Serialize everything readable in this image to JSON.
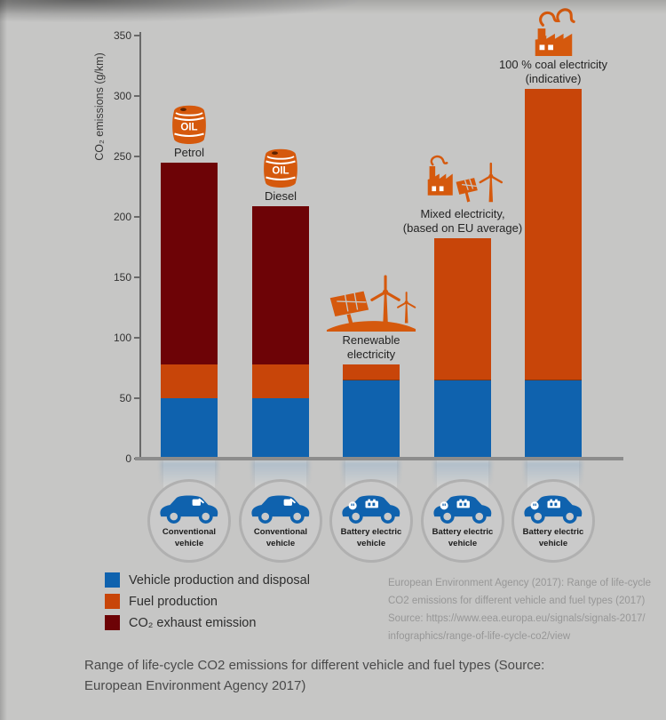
{
  "colors": {
    "background": "#c6c6c5",
    "bar_blue": "#0f62ae",
    "bar_orange": "#c84509",
    "bar_darkred": "#6d0306",
    "icon_orange": "#d5590d",
    "axis_gray": "#696969",
    "circle_ring": "#b0b0b0",
    "circle_fill": "#cacaca"
  },
  "chart_data": {
    "type": "bar",
    "stacked": true,
    "title": "",
    "xlabel": "",
    "ylabel": "CO₂ emissions (g/km)",
    "ylim": [
      0,
      350
    ],
    "yticks": [
      0,
      50,
      100,
      150,
      200,
      250,
      300,
      350
    ],
    "grid": false,
    "legend_position": "bottom-left",
    "categories": [
      "Petrol",
      "Diesel",
      "Renewable electricity",
      "Mixed electricity, (based on EU average)",
      "100 % coal electricity (indicative)"
    ],
    "series": [
      {
        "name": "Vehicle production and disposal",
        "color": "#0f62ae",
        "values": [
          50,
          50,
          65,
          65,
          65
        ]
      },
      {
        "name": "Fuel production",
        "color": "#c84509",
        "values": [
          28,
          28,
          13,
          117,
          241
        ]
      },
      {
        "name": "CO₂ exhaust emission",
        "color": "#6d0306",
        "values": [
          167,
          131,
          0,
          0,
          0
        ]
      }
    ],
    "stack_totals": [
      245,
      209,
      78,
      182,
      306
    ],
    "icon_text_oil": "OIL",
    "columns": [
      {
        "label_lines": [
          "Petrol"
        ],
        "icon": "oil-barrel",
        "vehicle_lines": [
          "Conventional",
          "vehicle"
        ],
        "vehicle_icon": "conventional-car"
      },
      {
        "label_lines": [
          "Diesel"
        ],
        "icon": "oil-barrel",
        "vehicle_lines": [
          "Conventional",
          "vehicle"
        ],
        "vehicle_icon": "conventional-car"
      },
      {
        "label_lines": [
          "Renewable",
          "electricity"
        ],
        "icon": "renewable",
        "vehicle_lines": [
          "Battery electric",
          "vehicle"
        ],
        "vehicle_icon": "ev-car"
      },
      {
        "label_lines": [
          "Mixed electricity,",
          "(based on EU average)"
        ],
        "icon": "mixed-electricity",
        "vehicle_lines": [
          "Battery electric",
          "vehicle"
        ],
        "vehicle_icon": "ev-car"
      },
      {
        "label_lines": [
          "100 % coal electricity",
          "(indicative)"
        ],
        "icon": "coal-factory",
        "vehicle_lines": [
          "Battery electric",
          "vehicle"
        ],
        "vehicle_icon": "ev-car"
      }
    ]
  },
  "legend": {
    "items": [
      {
        "label": "Vehicle production and disposal",
        "color": "#0f62ae"
      },
      {
        "label": "Fuel production",
        "color": "#c84509"
      },
      {
        "label": "CO₂ exhaust emission",
        "color": "#6d0306"
      }
    ]
  },
  "source_block": {
    "lines": [
      "European Environment Agency (2017): Range of life-cycle",
      "CO2 emissions for different vehicle and fuel types (2017)",
      "Source: https://www.eea.europa.eu/signals/signals-2017/",
      "infographics/range-of-life-cycle-co2/view"
    ]
  },
  "caption": {
    "text": "Range of life-cycle CO2 emissions for different vehicle and fuel types (Source: European Environment Agency 2017)"
  }
}
